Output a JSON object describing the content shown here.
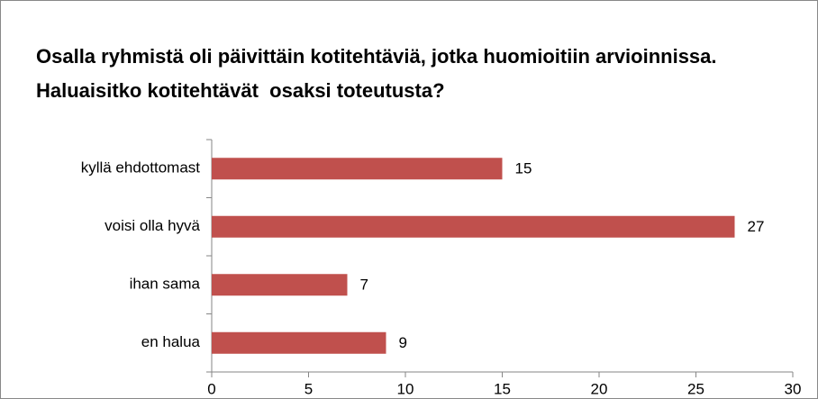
{
  "chart_data": {
    "type": "bar",
    "orientation": "horizontal",
    "title": "Osalla ryhmistä oli päivittäin kotitehtäviä, jotka huomioitiin arvioinnissa. Haluaisitko kotitehtävät  osaksi toteutusta?",
    "categories": [
      "kyllä ehdottomast",
      "voisi olla hyvä",
      "ihan sama",
      "en halua"
    ],
    "values": [
      15,
      27,
      7,
      9
    ],
    "color": "#c0504d",
    "xlim": [
      0,
      30
    ],
    "xticks": [
      0,
      5,
      10,
      15,
      20,
      25,
      30
    ],
    "grid": false
  }
}
